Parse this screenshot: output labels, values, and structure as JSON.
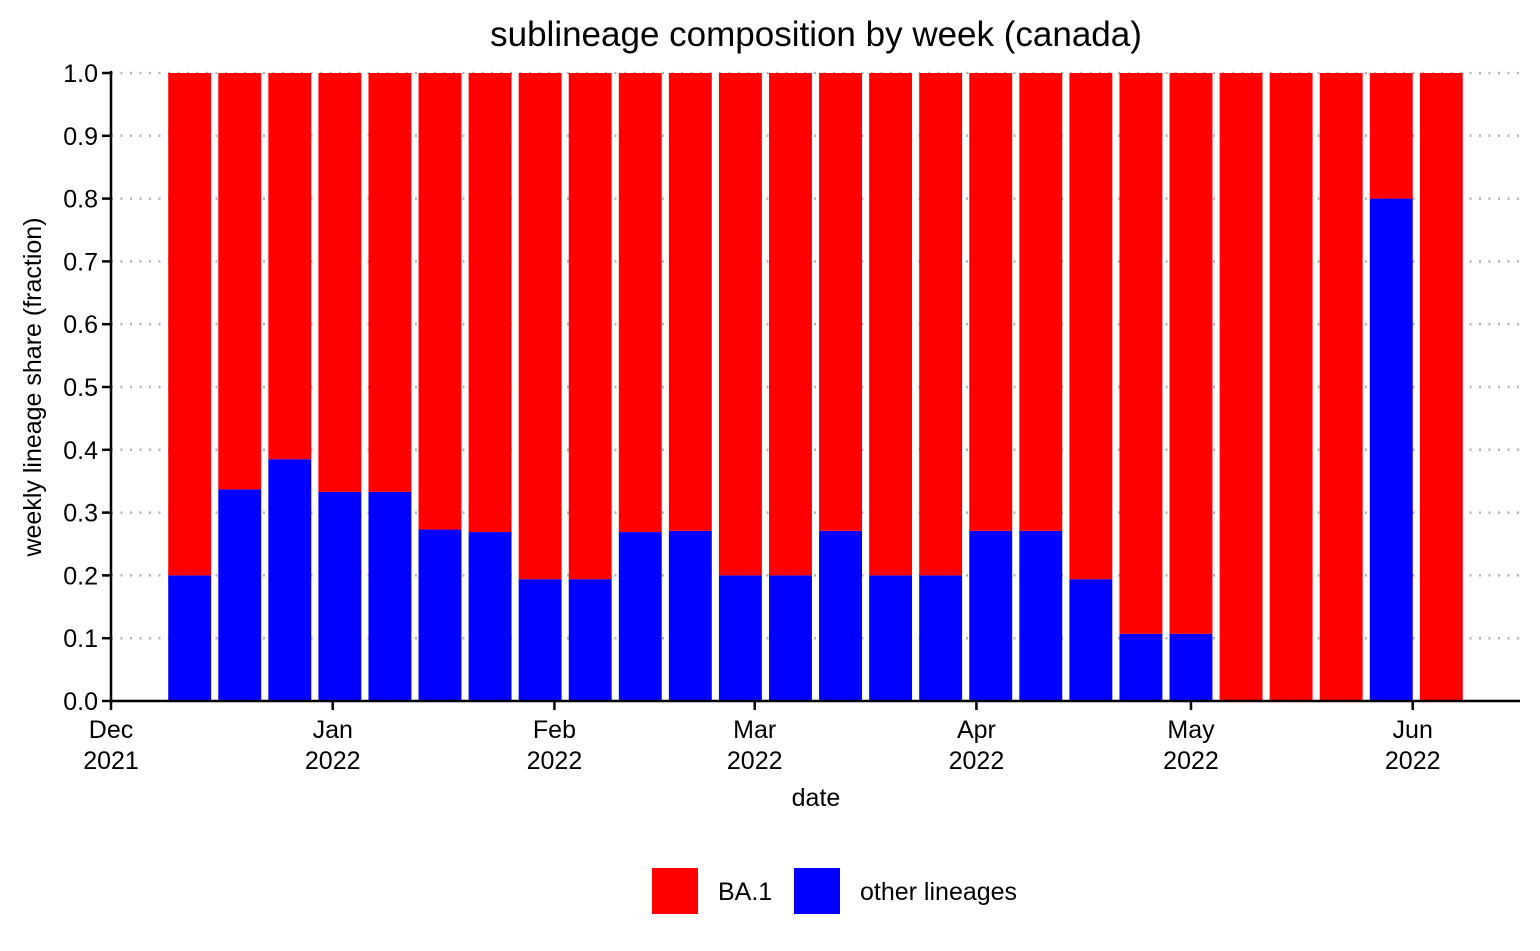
{
  "chart_data": {
    "type": "bar",
    "stacked": true,
    "title": "sublineage composition by week (canada)",
    "xlabel": "date",
    "ylabel": "weekly lineage share (fraction)",
    "ylim": [
      0,
      1
    ],
    "yticks": [
      "0.0",
      "0.1",
      "0.2",
      "0.3",
      "0.4",
      "0.5",
      "0.6",
      "0.7",
      "0.8",
      "0.9",
      "1.0"
    ],
    "xlim": [
      "2021-12-01",
      "2022-06-16"
    ],
    "xticks": [
      {
        "date": "2021-12-01",
        "month": "Dec",
        "year": "2021"
      },
      {
        "date": "2022-01-01",
        "month": "Jan",
        "year": "2022"
      },
      {
        "date": "2022-02-01",
        "month": "Feb",
        "year": "2022"
      },
      {
        "date": "2022-03-01",
        "month": "Mar",
        "year": "2022"
      },
      {
        "date": "2022-04-01",
        "month": "Apr",
        "year": "2022"
      },
      {
        "date": "2022-05-01",
        "month": "May",
        "year": "2022"
      },
      {
        "date": "2022-06-01",
        "month": "Jun",
        "year": "2022"
      }
    ],
    "grid": "horizontal dotted",
    "legend_position": "bottom",
    "x": [
      "2021-12-12",
      "2021-12-19",
      "2021-12-26",
      "2022-01-02",
      "2022-01-09",
      "2022-01-16",
      "2022-01-23",
      "2022-01-30",
      "2022-02-06",
      "2022-02-13",
      "2022-02-20",
      "2022-02-27",
      "2022-03-06",
      "2022-03-13",
      "2022-03-20",
      "2022-03-27",
      "2022-04-03",
      "2022-04-10",
      "2022-04-17",
      "2022-04-24",
      "2022-05-01",
      "2022-05-08",
      "2022-05-15",
      "2022-05-22",
      "2022-05-29",
      "2022-06-05"
    ],
    "series": [
      {
        "name": "other lineages",
        "color": "#0000ff",
        "values": [
          0.2,
          0.337,
          0.385,
          0.333,
          0.333,
          0.273,
          0.269,
          0.194,
          0.194,
          0.269,
          0.271,
          0.2,
          0.2,
          0.271,
          0.2,
          0.2,
          0.271,
          0.271,
          0.194,
          0.107,
          0.107,
          0.0,
          0.0,
          0.0,
          0.8,
          0.0
        ]
      },
      {
        "name": "BA.1",
        "color": "#ff0000",
        "values": [
          0.8,
          0.663,
          0.615,
          0.667,
          0.667,
          0.727,
          0.731,
          0.806,
          0.806,
          0.731,
          0.729,
          0.8,
          0.8,
          0.729,
          0.8,
          0.8,
          0.729,
          0.729,
          0.806,
          0.893,
          0.893,
          1.0,
          1.0,
          1.0,
          0.2,
          1.0
        ]
      }
    ],
    "legend": [
      {
        "label": "BA.1",
        "color": "#ff0000"
      },
      {
        "label": "other lineages",
        "color": "#0000ff"
      }
    ]
  }
}
